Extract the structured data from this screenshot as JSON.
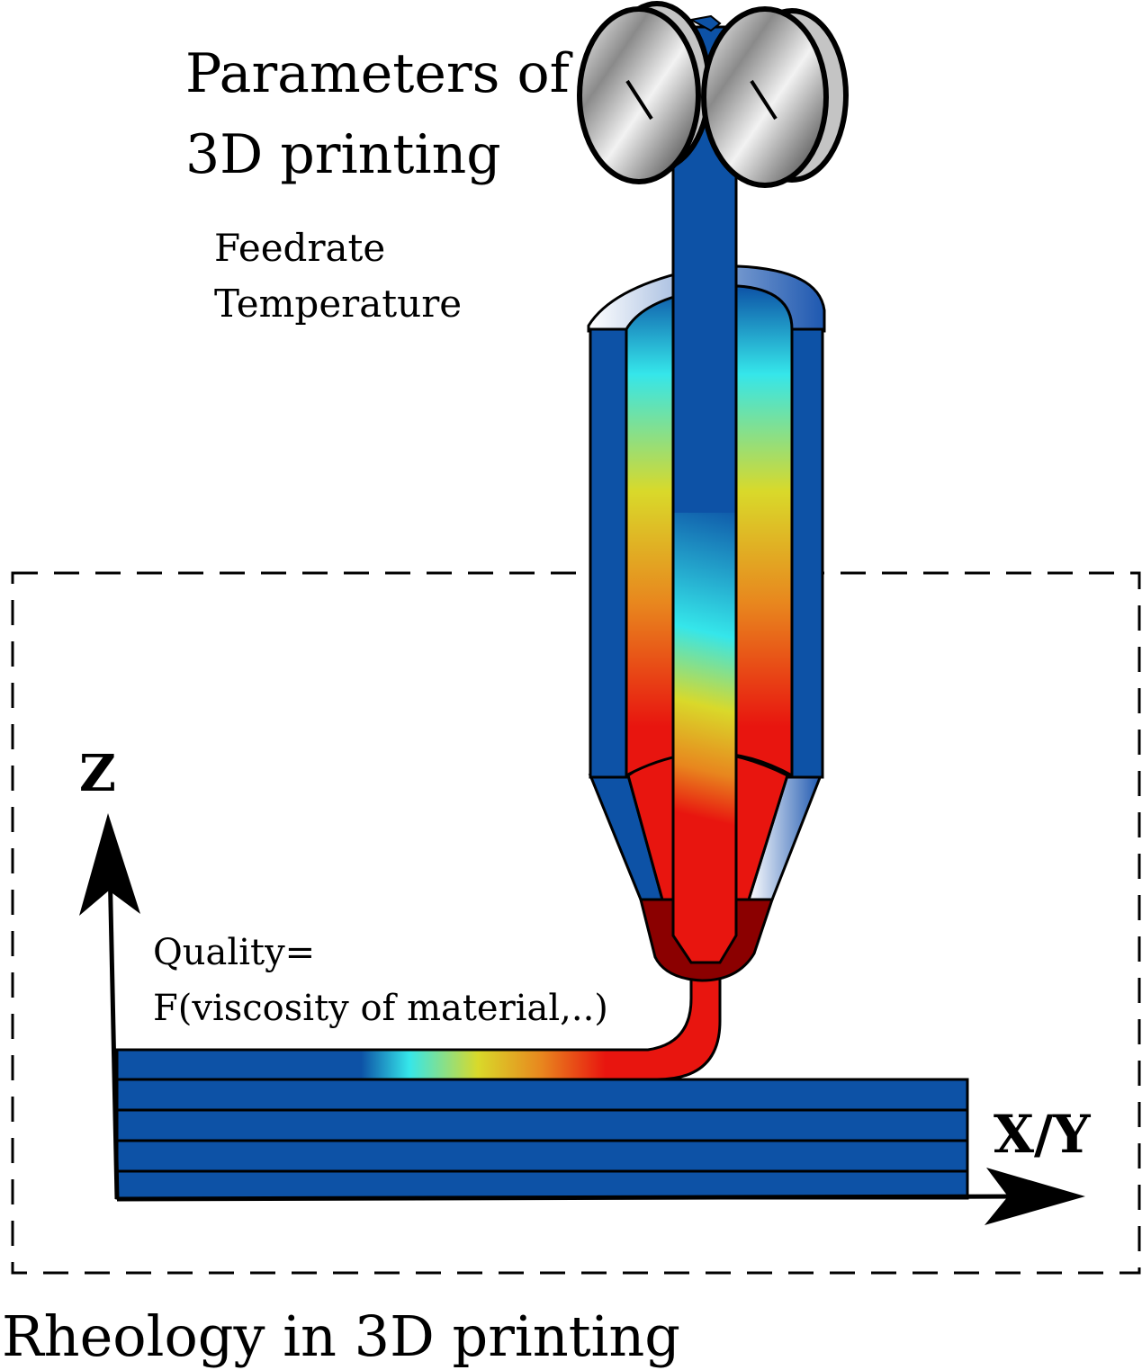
{
  "diagram": {
    "title_line1": "Parameters of",
    "title_line2": "3D printing",
    "params": [
      "Feedrate",
      "Temperature"
    ],
    "quality_line1": "Quality=",
    "quality_line2": "F(viscosity of material,..)",
    "axis_z": "Z",
    "axis_xy": "X/Y",
    "region_caption": "Rheology in 3D printing"
  },
  "colors": {
    "filament_blue": "#0d52a6",
    "hot_red": "#e8150f",
    "dark_red": "#8b0000",
    "cyan": "#35e6ea",
    "yellow": "#d9d92a",
    "orange": "#e8861e"
  }
}
